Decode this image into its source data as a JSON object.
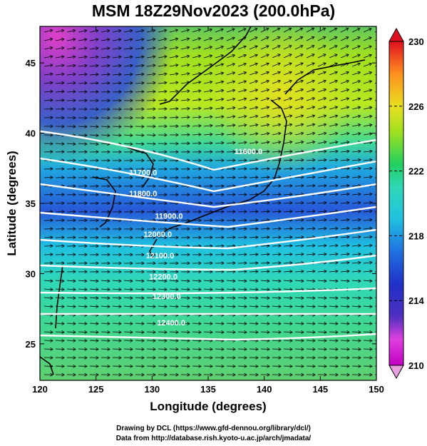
{
  "title": "MSM 18Z29Nov2023 (200.0hPa)",
  "xlabel": "Longitude (degrees)",
  "ylabel": "Latitude  (degrees)",
  "footer": {
    "line1": "Drawing by DCL (https://www.gfd-dennou.org/library/dcl/)",
    "line2": "Data from http://database.rish.kyoto-u.ac.jp/arch/jmadata/"
  },
  "chart_data": {
    "type": "heatmap",
    "xlim": [
      120,
      150
    ],
    "ylim": [
      22.4,
      47.6
    ],
    "x_ticks": [
      120,
      125,
      130,
      135,
      140,
      145,
      150
    ],
    "y_ticks": [
      25,
      30,
      35,
      40,
      45
    ],
    "colorbar": {
      "min": 210,
      "max": 230,
      "tick_labels": [
        "230",
        "226",
        "222",
        "218",
        "214",
        "210"
      ],
      "colors": [
        "#c000c0",
        "#e040e0",
        "#3a3ac8",
        "#2070e0",
        "#20c0e0",
        "#30d8b8",
        "#20d060",
        "#a0e020",
        "#e8e020",
        "#ffb030",
        "#ff6020",
        "#e01020"
      ]
    },
    "field_regions": [
      {
        "area": "northwest corner",
        "value_range": [
          210,
          212
        ]
      },
      {
        "area": "north of 40N",
        "value_range": [
          222,
          226
        ]
      },
      {
        "area": "band 33-40N",
        "value_range": [
          214,
          218
        ]
      },
      {
        "area": "south of 30N",
        "value_range": [
          218,
          222
        ]
      }
    ],
    "contours": [
      {
        "label": "11600.0",
        "lon": 138.6,
        "lat": 38.5
      },
      {
        "label": "11700.0",
        "lon": 129.2,
        "lat": 37.0
      },
      {
        "label": "11800.0",
        "lon": 129.2,
        "lat": 35.5
      },
      {
        "label": "11900.0",
        "lon": 131.5,
        "lat": 33.9
      },
      {
        "label": "12000.0",
        "lon": 130.5,
        "lat": 32.6
      },
      {
        "label": "12100.0",
        "lon": 130.7,
        "lat": 31.1
      },
      {
        "label": "12200.0",
        "lon": 131.0,
        "lat": 29.6
      },
      {
        "label": "12300.0",
        "lon": 131.3,
        "lat": 28.2
      },
      {
        "label": "12400.0",
        "lon": 131.7,
        "lat": 26.3
      }
    ],
    "wind": "vectors mostly westerly, curving anticyclonically in the north",
    "grid": false
  }
}
